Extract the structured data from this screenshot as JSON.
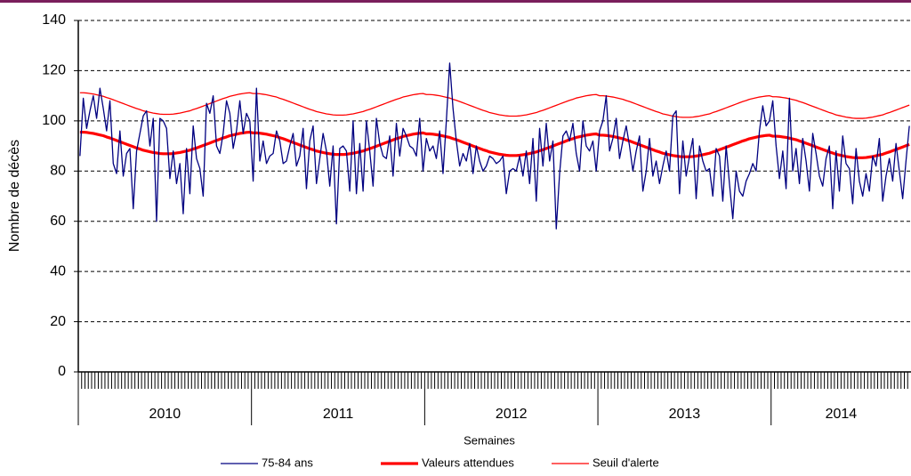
{
  "chart_data": {
    "type": "line",
    "y_label": "Nombre de décès",
    "x_label": "Semaines",
    "ylim": [
      0,
      140
    ],
    "yticks": [
      0,
      20,
      40,
      60,
      80,
      100,
      120,
      140
    ],
    "grid": true,
    "legend": "bottom",
    "year_groups": [
      {
        "label": "2010",
        "weeks": 52
      },
      {
        "label": "2011",
        "weeks": 52
      },
      {
        "label": "2012",
        "weeks": 52
      },
      {
        "label": "2013",
        "weeks": 52
      },
      {
        "label": "2014",
        "weeks": 42
      }
    ],
    "categories": [
      null,
      null,
      null,
      null,
      null,
      null,
      null,
      null,
      null,
      null,
      null,
      null,
      null,
      null,
      null,
      null,
      null,
      null,
      null,
      null,
      null,
      null,
      null,
      null,
      null,
      null,
      null,
      null,
      null,
      null,
      null,
      null,
      null,
      null,
      null,
      null,
      null,
      null,
      null,
      null,
      null,
      null,
      null,
      null,
      null,
      null,
      null,
      null,
      null,
      null,
      null,
      null,
      null,
      null,
      null,
      null,
      null,
      null,
      null,
      null,
      null,
      null,
      null,
      null,
      null,
      null,
      null,
      null,
      null,
      null,
      null,
      null,
      null,
      null,
      null,
      null,
      null,
      null,
      null,
      null,
      null,
      null,
      null,
      null,
      null,
      null,
      null,
      null,
      null,
      null,
      null,
      null,
      null,
      null,
      null,
      null,
      null,
      null,
      null,
      null,
      null,
      null,
      null,
      null,
      null,
      null,
      null,
      null,
      null,
      null,
      null,
      null,
      null,
      null,
      null,
      null,
      null,
      null,
      null,
      null,
      null,
      null,
      null,
      null,
      null,
      null,
      null,
      null,
      null,
      null,
      null,
      null,
      null,
      null,
      null,
      null,
      null,
      null,
      null,
      null,
      null,
      null,
      null,
      null,
      null,
      null,
      null,
      null,
      null,
      null,
      null,
      null,
      null,
      null,
      null,
      null,
      null,
      null,
      null,
      null,
      null,
      null,
      null,
      null,
      null,
      null,
      null,
      null,
      null,
      null,
      null,
      null,
      null,
      null,
      null,
      null,
      null,
      null,
      null,
      null,
      null,
      null,
      null,
      null,
      null,
      null,
      null,
      null,
      null,
      null,
      null,
      null,
      null,
      null,
      null,
      null,
      null,
      null,
      null,
      null,
      null,
      null,
      null,
      null,
      null,
      null,
      null,
      null,
      null,
      null,
      null,
      null,
      null,
      null,
      null,
      null,
      null,
      null,
      null,
      null,
      null,
      null,
      null,
      null,
      null,
      null,
      null,
      null,
      null,
      null,
      null,
      null,
      null,
      null,
      null,
      null,
      null,
      null,
      null,
      null,
      null,
      null,
      null,
      null,
      null,
      null,
      null,
      null,
      null,
      null
    ],
    "series": [
      {
        "name": "75-84 ans",
        "color": "#000080",
        "width": 1.3,
        "values": [
          86,
          109,
          97,
          104,
          110,
          101,
          113,
          105,
          96,
          108,
          83,
          79,
          96,
          78,
          87,
          89,
          65,
          88,
          95,
          102,
          104,
          90,
          101,
          60,
          101,
          100,
          97,
          77,
          88,
          75,
          83,
          63,
          89,
          71,
          98,
          85,
          81,
          70,
          107,
          103,
          110,
          90,
          87,
          95,
          108,
          103,
          89,
          96,
          108,
          95,
          103,
          100,
          76,
          113,
          84,
          92,
          83,
          86,
          87,
          96,
          92,
          83,
          84,
          90,
          95,
          82,
          86,
          97,
          73,
          92,
          98,
          75,
          85,
          95,
          88,
          74,
          90,
          59,
          89,
          90,
          88,
          72,
          100,
          71,
          91,
          72,
          100,
          88,
          74,
          101,
          91,
          86,
          85,
          94,
          78,
          99,
          86,
          97,
          94,
          90,
          89,
          86,
          101,
          80,
          93,
          88,
          90,
          85,
          96,
          79,
          100,
          123,
          105,
          92,
          82,
          87,
          84,
          91,
          79,
          90,
          84,
          80,
          82,
          86,
          85,
          83,
          84,
          86,
          71,
          80,
          81,
          80,
          86,
          78,
          88,
          75,
          93,
          68,
          97,
          82,
          99,
          84,
          92,
          57,
          79,
          94,
          96,
          92,
          99,
          87,
          80,
          100,
          90,
          88,
          92,
          80,
          96,
          100,
          110,
          88,
          93,
          101,
          85,
          92,
          98,
          90,
          80,
          88,
          94,
          72,
          80,
          93,
          78,
          84,
          75,
          82,
          88,
          80,
          102,
          104,
          71,
          92,
          78,
          86,
          93,
          69,
          90,
          84,
          80,
          81,
          70,
          89,
          86,
          68,
          90,
          75,
          61,
          80,
          72,
          70,
          76,
          79,
          83,
          80,
          96,
          106,
          98,
          100,
          108,
          90,
          77,
          88,
          73,
          109,
          80,
          89,
          75,
          93,
          84,
          72,
          95,
          87,
          78,
          74,
          85,
          90,
          65,
          88,
          72,
          94,
          83,
          81,
          67,
          89,
          76,
          70,
          79,
          72,
          86,
          82,
          93,
          68,
          78,
          85,
          76,
          91,
          80,
          69,
          84,
          98
        ]
      },
      {
        "name": "Valeurs attendues",
        "color": "#ff0000",
        "width": 3.2,
        "values": [
          95.5,
          95.5,
          95.4,
          95.2,
          95.0,
          94.7,
          94.4,
          94.1,
          93.6,
          93.2,
          92.7,
          92.2,
          91.7,
          91.2,
          90.7,
          90.2,
          89.7,
          89.2,
          88.8,
          88.3,
          88.0,
          87.7,
          87.4,
          87.2,
          87.0,
          86.9,
          86.9,
          86.9,
          87.0,
          87.2,
          87.4,
          87.7,
          88.0,
          88.3,
          88.8,
          89.2,
          89.7,
          90.2,
          90.7,
          91.2,
          91.7,
          92.2,
          92.7,
          93.2,
          93.6,
          94.1,
          94.4,
          94.7,
          95.0,
          95.2,
          95.4,
          95.5,
          95.2,
          95.2,
          95.1,
          94.9,
          94.7,
          94.4,
          94.1,
          93.8,
          93.3,
          92.9,
          92.4,
          91.9,
          91.4,
          90.9,
          90.4,
          89.9,
          89.4,
          88.9,
          88.5,
          88.0,
          87.7,
          87.4,
          87.1,
          86.9,
          86.7,
          86.6,
          86.6,
          86.6,
          86.7,
          86.9,
          87.1,
          87.4,
          87.7,
          88.0,
          88.5,
          88.9,
          89.4,
          89.9,
          90.4,
          90.9,
          91.4,
          91.9,
          92.4,
          92.9,
          93.3,
          93.8,
          94.1,
          94.4,
          94.7,
          94.9,
          95.1,
          95.2,
          94.8,
          94.8,
          94.7,
          94.5,
          94.3,
          94.0,
          93.7,
          93.4,
          92.9,
          92.5,
          92.0,
          91.5,
          91.0,
          90.5,
          90.0,
          89.5,
          89.0,
          88.5,
          88.1,
          87.6,
          87.3,
          87.0,
          86.7,
          86.5,
          86.3,
          86.2,
          86.2,
          86.2,
          86.3,
          86.5,
          86.7,
          87.0,
          87.3,
          87.6,
          88.1,
          88.5,
          89.0,
          89.5,
          90.0,
          90.5,
          91.0,
          91.5,
          92.0,
          92.5,
          92.9,
          93.4,
          93.7,
          94.0,
          94.3,
          94.5,
          94.7,
          94.8,
          94.3,
          94.3,
          94.2,
          94.0,
          93.8,
          93.5,
          93.2,
          92.9,
          92.4,
          92.0,
          91.5,
          91.0,
          90.5,
          90.0,
          89.5,
          89.0,
          88.5,
          88.0,
          87.6,
          87.1,
          86.8,
          86.5,
          86.2,
          86.0,
          85.8,
          85.7,
          85.7,
          85.7,
          85.8,
          86.0,
          86.2,
          86.5,
          86.8,
          87.1,
          87.6,
          88.0,
          88.5,
          89.0,
          89.5,
          90.0,
          90.5,
          91.0,
          91.5,
          92.0,
          92.4,
          92.9,
          93.2,
          93.5,
          93.8,
          94.0,
          94.2,
          94.3,
          93.9,
          93.9,
          93.8,
          93.6,
          93.4,
          93.1,
          92.8,
          92.5,
          92.0,
          91.6,
          91.1,
          90.6,
          90.1,
          89.6,
          89.1,
          88.6,
          88.1,
          87.6,
          87.2,
          86.7,
          86.4,
          86.1,
          85.8,
          85.6,
          85.4,
          85.3,
          85.3,
          85.3,
          85.4,
          85.6,
          85.8,
          86.1,
          86.4,
          86.7,
          87.2,
          87.6,
          88.1,
          88.6,
          89.1,
          89.6,
          90.1,
          90.6
        ]
      },
      {
        "name": "Seuil d'alerte",
        "color": "#ff0000",
        "width": 1.3,
        "values": [
          111.2,
          111.2,
          111.1,
          110.9,
          110.7,
          110.4,
          110.1,
          109.8,
          109.3,
          108.9,
          108.4,
          107.9,
          107.4,
          106.9,
          106.4,
          105.9,
          105.4,
          104.9,
          104.5,
          104.0,
          103.7,
          103.4,
          103.1,
          102.9,
          102.7,
          102.6,
          102.6,
          102.6,
          102.7,
          102.9,
          103.1,
          103.4,
          103.7,
          104.0,
          104.5,
          104.9,
          105.4,
          105.9,
          106.4,
          106.9,
          107.4,
          107.9,
          108.4,
          108.9,
          109.3,
          109.8,
          110.1,
          110.4,
          110.7,
          110.9,
          111.1,
          111.2,
          110.9,
          110.9,
          110.8,
          110.6,
          110.4,
          110.1,
          109.8,
          109.5,
          109.0,
          108.6,
          108.1,
          107.6,
          107.1,
          106.6,
          106.1,
          105.6,
          105.1,
          104.6,
          104.2,
          103.7,
          103.4,
          103.1,
          102.8,
          102.6,
          102.4,
          102.3,
          102.3,
          102.3,
          102.4,
          102.6,
          102.8,
          103.1,
          103.4,
          103.7,
          104.2,
          104.6,
          105.1,
          105.6,
          106.1,
          106.6,
          107.1,
          107.6,
          108.1,
          108.6,
          109.0,
          109.5,
          109.8,
          110.1,
          110.4,
          110.6,
          110.8,
          110.9,
          110.5,
          110.5,
          110.4,
          110.2,
          110.0,
          109.7,
          109.4,
          109.1,
          108.6,
          108.2,
          107.7,
          107.2,
          106.7,
          106.2,
          105.7,
          105.2,
          104.7,
          104.2,
          103.8,
          103.3,
          103.0,
          102.7,
          102.4,
          102.2,
          102.0,
          101.9,
          101.9,
          101.9,
          102.0,
          102.2,
          102.4,
          102.7,
          103.0,
          103.3,
          103.8,
          104.2,
          104.7,
          105.2,
          105.7,
          106.2,
          106.7,
          107.2,
          107.7,
          108.2,
          108.6,
          109.1,
          109.4,
          109.7,
          110.0,
          110.2,
          110.4,
          110.5,
          110.0,
          110.0,
          109.9,
          109.7,
          109.5,
          109.2,
          108.9,
          108.6,
          108.1,
          107.7,
          107.2,
          106.7,
          106.2,
          105.7,
          105.2,
          104.7,
          104.2,
          103.7,
          103.3,
          102.8,
          102.5,
          102.2,
          101.9,
          101.7,
          101.5,
          101.4,
          101.4,
          101.4,
          101.5,
          101.7,
          101.9,
          102.2,
          102.5,
          102.8,
          103.3,
          103.7,
          104.2,
          104.7,
          105.2,
          105.7,
          106.2,
          106.7,
          107.2,
          107.7,
          108.1,
          108.6,
          108.9,
          109.2,
          109.5,
          109.7,
          109.9,
          110.0,
          109.6,
          109.6,
          109.5,
          109.3,
          109.1,
          108.8,
          108.5,
          108.2,
          107.7,
          107.3,
          106.8,
          106.3,
          105.8,
          105.3,
          104.8,
          104.3,
          103.8,
          103.3,
          102.9,
          102.4,
          102.1,
          101.8,
          101.5,
          101.3,
          101.1,
          101.0,
          101.0,
          101.0,
          101.1,
          101.3,
          101.5,
          101.8,
          102.1,
          102.4,
          102.9,
          103.3,
          103.8,
          104.3,
          104.8,
          105.3,
          105.8,
          106.3
        ]
      }
    ]
  }
}
